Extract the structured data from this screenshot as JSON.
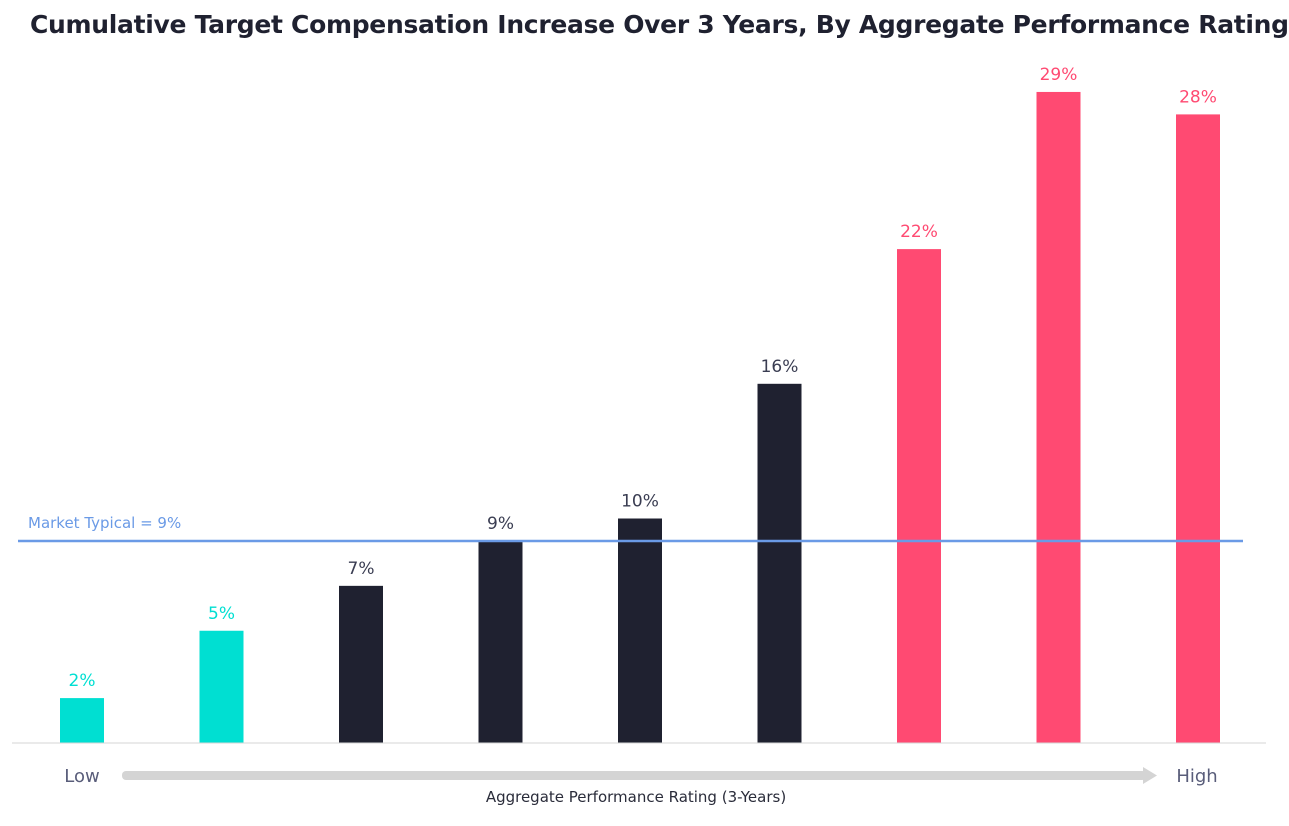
{
  "chart_data": {
    "type": "bar",
    "title": "Cumulative Target Compensation Increase Over 3 Years, By Aggregate Performance Rating",
    "xlabel": "Aggregate Performance Rating (3-Years)",
    "ylabel": "",
    "x_low_label": "Low",
    "x_high_label": "High",
    "ylim": [
      0,
      30
    ],
    "values": [
      2,
      5,
      7,
      9,
      10,
      16,
      22,
      29,
      28
    ],
    "labels": [
      "2%",
      "5%",
      "7%",
      "9%",
      "10%",
      "16%",
      "22%",
      "29%",
      "28%"
    ],
    "group": [
      "low",
      "low",
      "mid",
      "mid",
      "mid",
      "mid",
      "high",
      "high",
      "high"
    ],
    "reference_line": {
      "value": 9,
      "label": "Market Typical = 9%"
    }
  },
  "colors": {
    "low": "#00dfd2",
    "mid": "#1f2130",
    "high": "#ff4a72",
    "reference": "#6a9ae6",
    "baseline": "#d6d6d6",
    "arrow": "#d4d4d4",
    "axis_text": "#595d7a"
  }
}
